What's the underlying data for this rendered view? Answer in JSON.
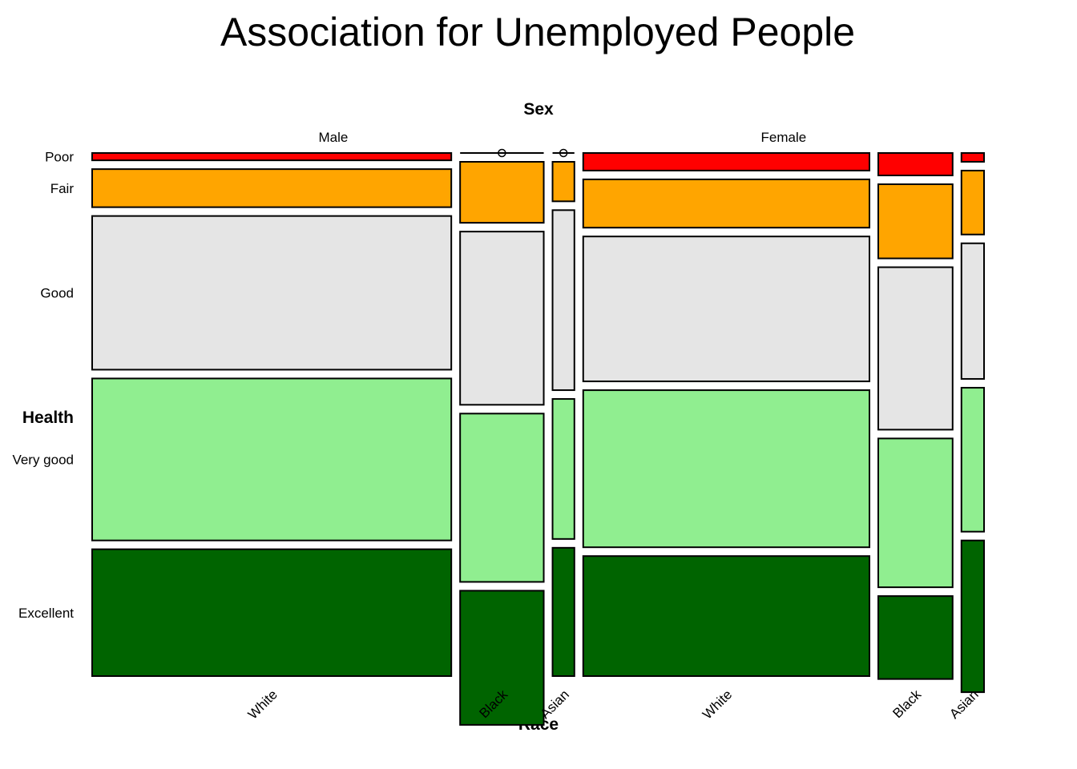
{
  "chart_data": {
    "type": "mosaic",
    "title": "Association for Unemployed People",
    "top_axis_title": "Sex",
    "left_axis_title": "Health",
    "bottom_axis_title": "Race",
    "sexes": [
      "Male",
      "Female"
    ],
    "races": [
      "White",
      "Black",
      "Asian"
    ],
    "health_levels": [
      "Poor",
      "Fair",
      "Good",
      "Very good",
      "Excellent"
    ],
    "colors": {
      "Poor": "#ff0000",
      "Fair": "#ffa500",
      "Good": "#e5e5e5",
      "Very good": "#90ee90",
      "Excellent": "#006400"
    },
    "cells": {
      "Male": {
        "White": [
          0.015,
          0.078,
          0.315,
          0.332,
          0.26
        ],
        "Black": [
          0.0,
          0.125,
          0.355,
          0.345,
          0.275
        ],
        "Asian": [
          0.0,
          0.081,
          0.369,
          0.287,
          0.263
        ]
      },
      "Female": {
        "White": [
          0.036,
          0.099,
          0.297,
          0.322,
          0.246
        ],
        "Black": [
          0.046,
          0.152,
          0.333,
          0.305,
          0.17
        ],
        "Asian": [
          0.018,
          0.131,
          0.278,
          0.295,
          0.311
        ]
      }
    },
    "sex_share": {
      "Male": 0.548,
      "Female": 0.452
    },
    "race_share": {
      "Male": {
        "White": 0.773,
        "Black": 0.18,
        "Asian": 0.047
      },
      "Female": {
        "White": 0.747,
        "Black": 0.194,
        "Asian": 0.059
      }
    },
    "empty_cell_marker": "o"
  }
}
